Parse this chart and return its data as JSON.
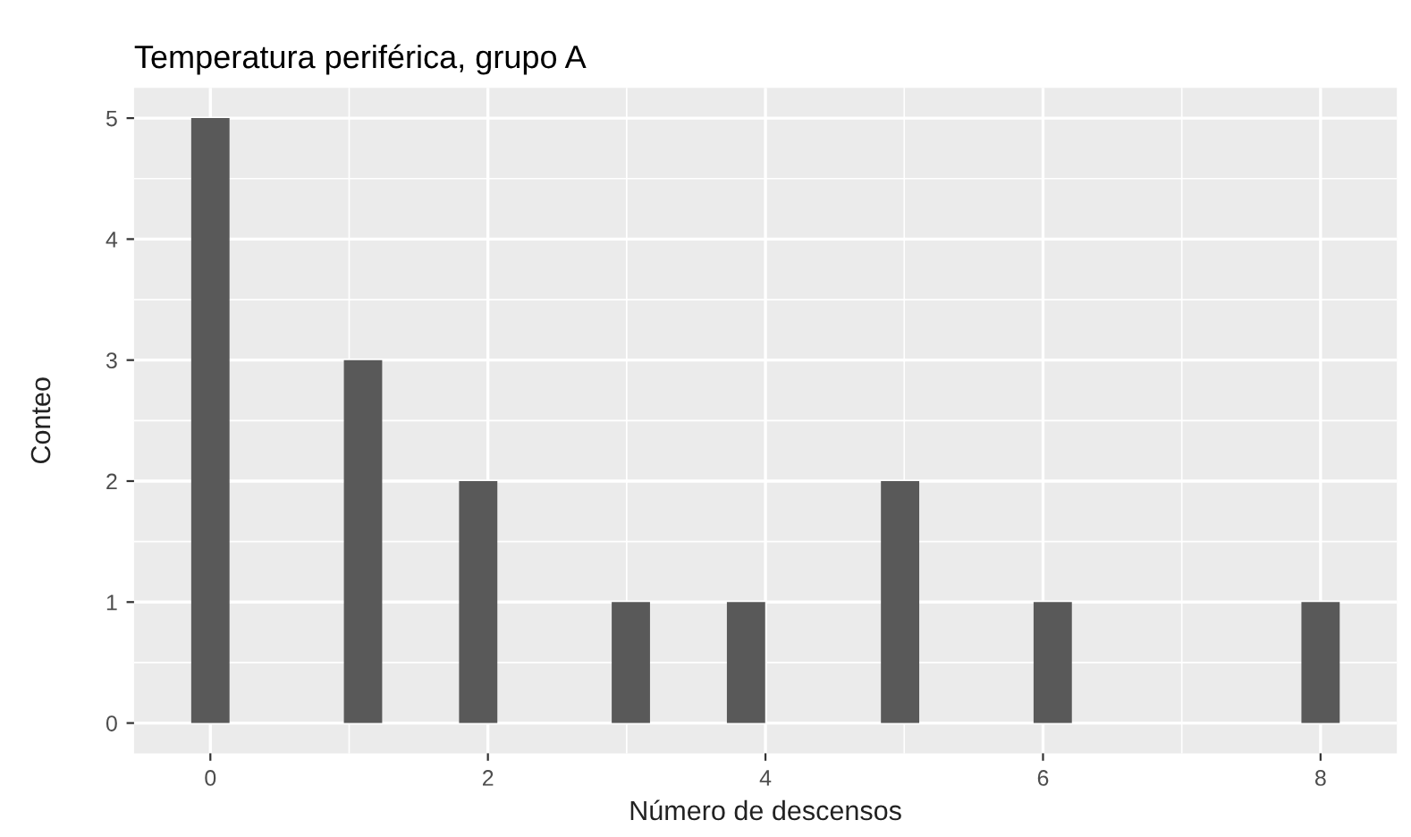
{
  "chart_data": {
    "type": "bar",
    "title": "Temperatura periférica, grupo A",
    "xlabel": "Número de descensos",
    "ylabel": "Conteo",
    "x": [
      0,
      1.1,
      1.93,
      3.03,
      3.86,
      4.97,
      6.07,
      8.0
    ],
    "values": [
      5,
      3,
      2,
      1,
      1,
      2,
      1,
      1
    ],
    "color": "#595959",
    "xlim": [
      -0.55,
      8.55
    ],
    "ylim": [
      -0.25,
      5.25
    ],
    "xticks": [
      0,
      2,
      4,
      6,
      8
    ],
    "yticks": [
      0,
      1,
      2,
      3,
      4,
      5
    ],
    "grid": true
  }
}
